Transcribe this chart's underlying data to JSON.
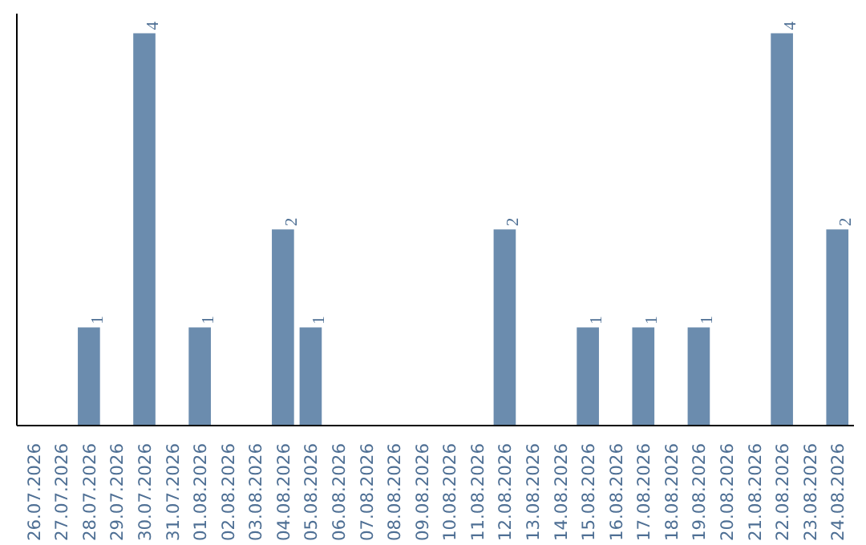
{
  "chart_data": {
    "type": "bar",
    "categories": [
      "26.07.2026",
      "27.07.2026",
      "28.07.2026",
      "29.07.2026",
      "30.07.2026",
      "31.07.2026",
      "01.08.2026",
      "02.08.2026",
      "03.08.2026",
      "04.08.2026",
      "05.08.2026",
      "06.08.2026",
      "07.08.2026",
      "08.08.2026",
      "09.08.2026",
      "10.08.2026",
      "11.08.2026",
      "12.08.2026",
      "13.08.2026",
      "14.08.2026",
      "15.08.2026",
      "16.08.2026",
      "17.08.2026",
      "18.08.2026",
      "19.08.2026",
      "20.08.2026",
      "21.08.2026",
      "22.08.2026",
      "23.08.2026",
      "24.08.2026"
    ],
    "values": [
      0,
      0,
      1,
      0,
      4,
      0,
      1,
      0,
      0,
      2,
      1,
      0,
      0,
      0,
      0,
      0,
      0,
      2,
      0,
      0,
      1,
      0,
      1,
      0,
      1,
      0,
      0,
      4,
      0,
      2
    ],
    "value_labels": [
      null,
      null,
      "1",
      null,
      "4",
      null,
      "1",
      null,
      null,
      "2",
      "1",
      null,
      null,
      null,
      null,
      null,
      null,
      "2",
      null,
      null,
      "1",
      null,
      "1",
      null,
      "1",
      null,
      null,
      "4",
      null,
      "2"
    ],
    "color": "#6b8cae",
    "grid": false,
    "tick_labels": "x"
  }
}
